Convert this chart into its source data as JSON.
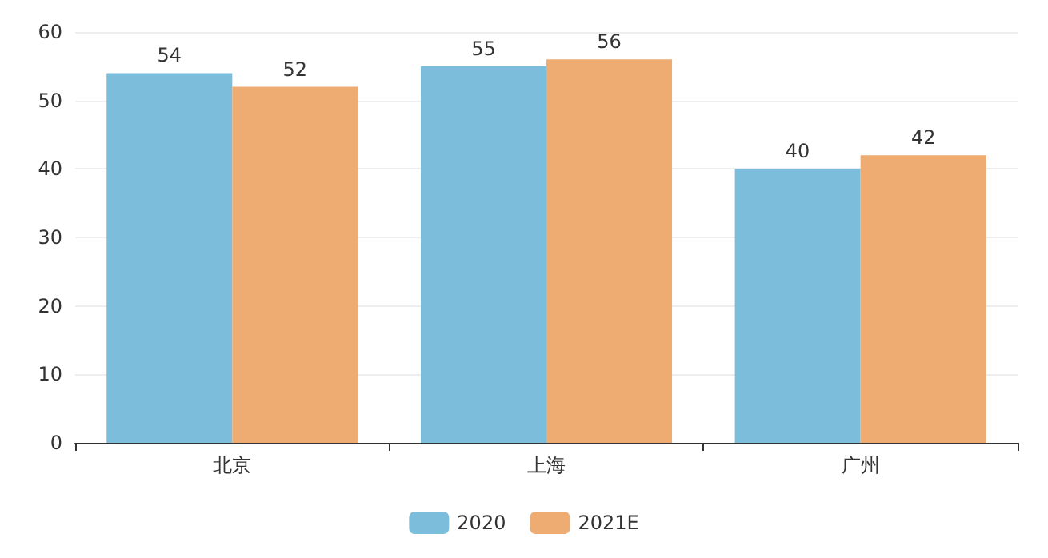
{
  "chart_data": {
    "type": "bar",
    "categories": [
      "北京",
      "上海",
      "广州"
    ],
    "series": [
      {
        "name": "2020",
        "color": "#7bbdda",
        "values": [
          54,
          55,
          40
        ]
      },
      {
        "name": "2021E",
        "color": "#eeac72",
        "values": [
          52,
          56,
          42
        ]
      }
    ],
    "ylim": [
      0,
      60
    ],
    "yticks": [
      0,
      10,
      20,
      30,
      40,
      50,
      60
    ],
    "grid": "y",
    "legend": "bottom",
    "data_labels": true
  }
}
